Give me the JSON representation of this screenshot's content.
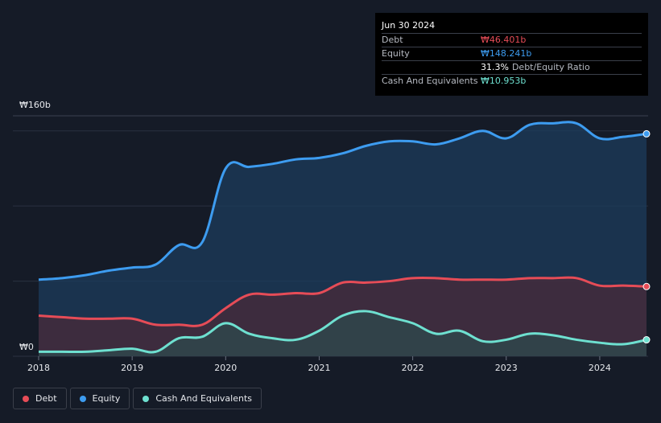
{
  "tooltip": {
    "date": "Jun 30 2024",
    "rows": [
      {
        "label": "Debt",
        "value": "₩46.401b",
        "color": "#e64c57"
      },
      {
        "label": "Equity",
        "value": "₩148.241b",
        "color": "#3d9cf0"
      },
      {
        "label": "",
        "value": "31.3%",
        "suffix": "Debt/Equity Ratio"
      },
      {
        "label": "Cash And Equivalents",
        "value": "₩10.953b",
        "color": "#6ee0d0"
      }
    ]
  },
  "legend": [
    {
      "label": "Debt",
      "color": "#e64c57"
    },
    {
      "label": "Equity",
      "color": "#3d9cf0"
    },
    {
      "label": "Cash And Equivalents",
      "color": "#6ee0d0"
    }
  ],
  "chart_data": {
    "type": "area",
    "y_top_label": "₩160b",
    "y_bottom_label": "₩0",
    "ylim": [
      0,
      160
    ],
    "xlim": [
      2018.0,
      2024.5
    ],
    "x_ticks": [
      2018,
      2019,
      2020,
      2021,
      2022,
      2023,
      2024
    ],
    "grid": true,
    "series": [
      {
        "name": "Equity",
        "color": "#3d9cf0",
        "x": [
          2018.0,
          2018.25,
          2018.5,
          2018.75,
          2019.0,
          2019.25,
          2019.5,
          2019.75,
          2020.0,
          2020.25,
          2020.5,
          2020.75,
          2021.0,
          2021.25,
          2021.5,
          2021.75,
          2022.0,
          2022.25,
          2022.5,
          2022.75,
          2023.0,
          2023.25,
          2023.5,
          2023.75,
          2024.0,
          2024.25,
          2024.5
        ],
        "values": [
          51,
          52,
          54,
          57,
          59,
          61,
          74,
          76,
          125,
          126,
          128,
          131,
          132,
          135,
          140,
          143,
          143,
          141,
          145,
          150,
          145,
          154,
          155,
          155,
          145,
          146,
          148
        ]
      },
      {
        "name": "Debt",
        "color": "#e64c57",
        "x": [
          2018.0,
          2018.25,
          2018.5,
          2018.75,
          2019.0,
          2019.25,
          2019.5,
          2019.75,
          2020.0,
          2020.25,
          2020.5,
          2020.75,
          2021.0,
          2021.25,
          2021.5,
          2021.75,
          2022.0,
          2022.25,
          2022.5,
          2022.75,
          2023.0,
          2023.25,
          2023.5,
          2023.75,
          2024.0,
          2024.25,
          2024.5
        ],
        "values": [
          27,
          26,
          25,
          25,
          25,
          21,
          21,
          21,
          32,
          41,
          41,
          42,
          42,
          49,
          49,
          50,
          52,
          52,
          51,
          51,
          51,
          52,
          52,
          52,
          47,
          47,
          46.4
        ]
      },
      {
        "name": "Cash And Equivalents",
        "color": "#6ee0d0",
        "x": [
          2018.0,
          2018.25,
          2018.5,
          2018.75,
          2019.0,
          2019.25,
          2019.5,
          2019.75,
          2020.0,
          2020.25,
          2020.5,
          2020.75,
          2021.0,
          2021.25,
          2021.5,
          2021.75,
          2022.0,
          2022.25,
          2022.5,
          2022.75,
          2023.0,
          2023.25,
          2023.5,
          2023.75,
          2024.0,
          2024.25,
          2024.5
        ],
        "values": [
          3,
          3,
          3,
          4,
          5,
          3,
          12,
          13,
          22,
          15,
          12,
          11,
          17,
          27,
          30,
          26,
          22,
          15,
          17,
          10,
          11,
          15,
          14,
          11,
          9,
          8,
          10.95
        ]
      }
    ]
  }
}
